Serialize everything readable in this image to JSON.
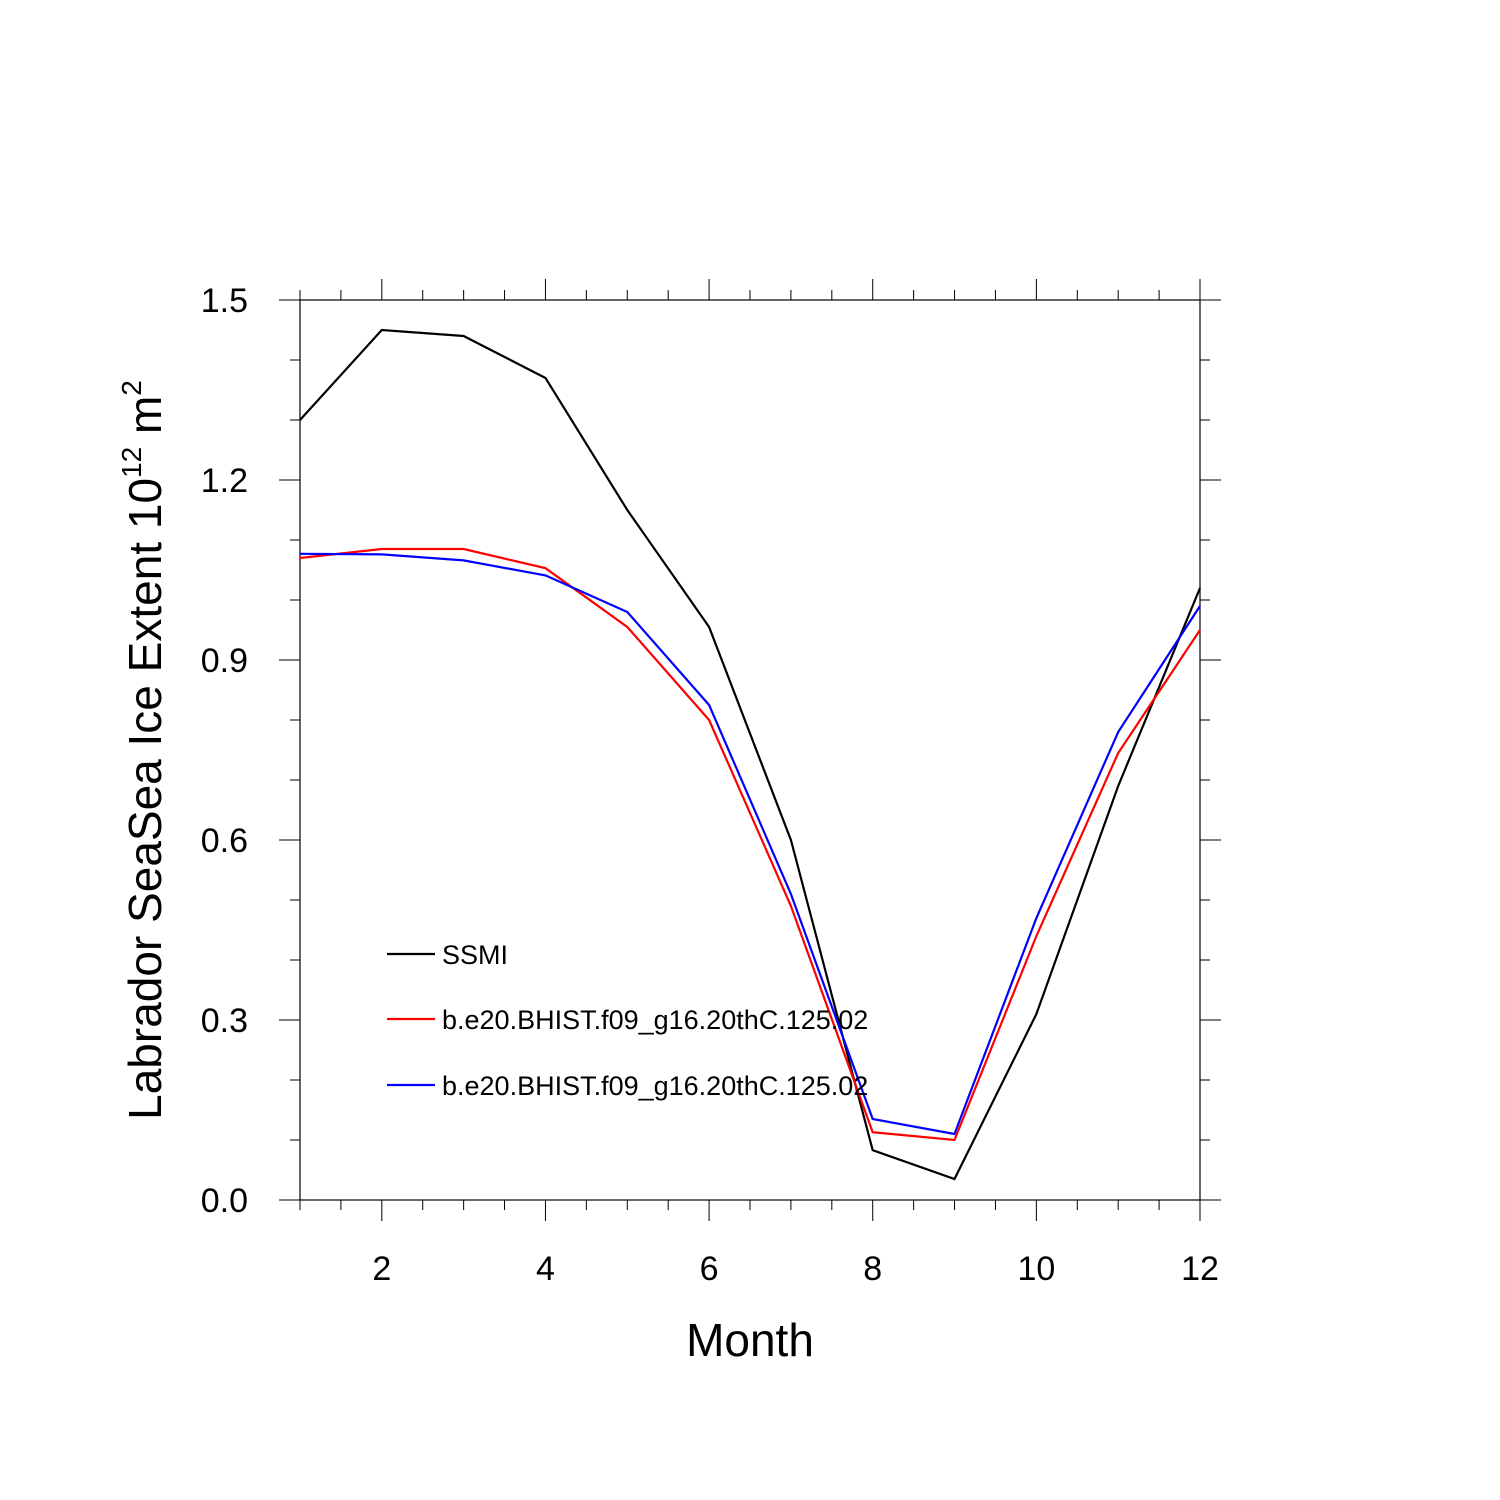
{
  "chart_data": {
    "type": "line",
    "title": "",
    "xlabel": "Month",
    "ylabel": {
      "main": "Labrador SeaSea Ice Extent 10",
      "superscript": "12",
      "unit": " m",
      "unit_superscript": "2"
    },
    "xlim": [
      1,
      12
    ],
    "ylim": [
      0,
      1.5
    ],
    "x_ticks": [
      2,
      4,
      6,
      8,
      10,
      12
    ],
    "x_tick_labels": [
      "2",
      "4",
      "6",
      "8",
      "10",
      "12"
    ],
    "y_ticks": [
      0,
      0.3,
      0.6,
      0.9,
      1.2,
      1.5
    ],
    "y_tick_labels": [
      "0.0",
      "0.3",
      "0.6",
      "0.9",
      "1.2",
      "1.5"
    ],
    "x": [
      1,
      2,
      3,
      4,
      5,
      6,
      7,
      8,
      9,
      10,
      11,
      12
    ],
    "series": [
      {
        "name": "SSMI",
        "color": "#000000",
        "values": [
          1.3,
          1.45,
          1.44,
          1.37,
          1.15,
          0.955,
          0.6,
          0.083,
          0.035,
          0.31,
          0.69,
          1.02
        ]
      },
      {
        "name": "b.e20.BHIST.f09_g16.20thC.125.02",
        "color": "#ff0000",
        "values": [
          1.07,
          1.085,
          1.085,
          1.053,
          0.955,
          0.8,
          0.49,
          0.113,
          0.1,
          0.44,
          0.745,
          0.95
        ]
      },
      {
        "name": "b.e20.BHIST.f09_g16.20thC.125.02",
        "color": "#0000ff",
        "values": [
          1.077,
          1.076,
          1.066,
          1.041,
          0.98,
          0.825,
          0.51,
          0.135,
          0.11,
          0.47,
          0.78,
          0.99
        ]
      }
    ],
    "legend_position": "lower-left inside",
    "grid": false
  }
}
